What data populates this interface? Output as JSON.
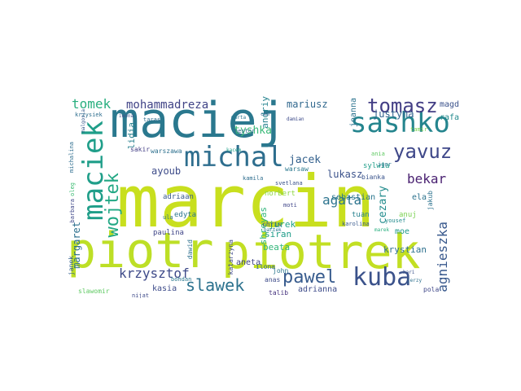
{
  "word_cloud": {
    "words": [
      {
        "text": "marcin",
        "color": "#c8df1e"
      },
      {
        "text": "maciej",
        "color": "#2a788e"
      },
      {
        "text": "piotr",
        "color": "#bddf26"
      },
      {
        "text": "piotrek",
        "color": "#c2df23"
      },
      {
        "text": "sashko",
        "color": "#25858e"
      },
      {
        "text": "maciek",
        "color": "#1f9e89"
      },
      {
        "text": "michal",
        "color": "#2e6e8e"
      },
      {
        "text": "kuba",
        "color": "#3b528b"
      },
      {
        "text": "tomasz",
        "color": "#433e85"
      },
      {
        "text": "yavuz",
        "color": "#3f4889"
      },
      {
        "text": "pawel",
        "color": "#375b8d"
      },
      {
        "text": "wojtek",
        "color": "#22a884"
      },
      {
        "text": "slawek",
        "color": "#2c728e"
      },
      {
        "text": "krzysztof",
        "color": "#3e4a89"
      },
      {
        "text": "agnieszka",
        "color": "#38588c"
      },
      {
        "text": "agata",
        "color": "#2c738e"
      },
      {
        "text": "bekar",
        "color": "#481f70"
      },
      {
        "text": "tomek",
        "color": "#29af7f"
      },
      {
        "text": "mohammadreza",
        "color": "#414487"
      },
      {
        "text": "mariusz",
        "color": "#31688e"
      },
      {
        "text": "justyna",
        "color": "#32648e"
      },
      {
        "text": "jacek",
        "color": "#34618d"
      },
      {
        "text": "tyshka",
        "color": "#38b977"
      },
      {
        "text": "andriy",
        "color": "#25838e"
      },
      {
        "text": "lukasz",
        "color": "#3b528b"
      },
      {
        "text": "cezary",
        "color": "#228c8d"
      },
      {
        "text": "margaret",
        "color": "#2d708e"
      },
      {
        "text": "ayoub",
        "color": "#3e4c8a"
      },
      {
        "text": "lidia",
        "color": "#27808e"
      },
      {
        "text": "shreyas",
        "color": "#30b57a"
      },
      {
        "text": "jurek",
        "color": "#1fa188"
      },
      {
        "text": "beata",
        "color": "#32b67a"
      },
      {
        "text": "siran",
        "color": "#1e9c89"
      },
      {
        "text": "aneta",
        "color": "#414487"
      },
      {
        "text": "adrianna",
        "color": "#3e4c8a"
      },
      {
        "text": "krystian",
        "color": "#2d708e"
      },
      {
        "text": "sebastian",
        "color": "#2a768e"
      },
      {
        "text": "norbert",
        "color": "#8fd744"
      },
      {
        "text": "magda",
        "color": "#3b528b"
      },
      {
        "text": "rafal",
        "color": "#238a8d"
      },
      {
        "text": "tuan",
        "color": "#26818e"
      },
      {
        "text": "moe",
        "color": "#1f998a"
      },
      {
        "text": "ela",
        "color": "#2c738e"
      },
      {
        "text": "anuj",
        "color": "#7ad151"
      },
      {
        "text": "kasia",
        "color": "#3e4c8a"
      },
      {
        "text": "edyta",
        "color": "#2a768e"
      },
      {
        "text": "paulina",
        "color": "#404688"
      },
      {
        "text": "adriaan",
        "color": "#38598c"
      },
      {
        "text": "joanna",
        "color": "#2c738e"
      },
      {
        "text": "sylwia",
        "color": "#1f9e89"
      },
      {
        "text": "bianka",
        "color": "#3a548c"
      },
      {
        "text": "warszawa",
        "color": "#2d708e"
      },
      {
        "text": "warsaw",
        "color": "#2a788e"
      },
      {
        "text": "sakir",
        "color": "#433e85"
      },
      {
        "text": "john",
        "color": "#2a778e"
      },
      {
        "text": "anas",
        "color": "#3e4c8a"
      },
      {
        "text": "talib",
        "color": "#46337e"
      },
      {
        "text": "pola",
        "color": "#3f4788"
      },
      {
        "text": "jakub",
        "color": "#2c728e"
      },
      {
        "text": "ilona",
        "color": "#32658e"
      },
      {
        "text": "chris",
        "color": "#3b528b"
      },
      {
        "text": "dawid",
        "color": "#2d708e"
      },
      {
        "text": "katarzyna",
        "color": "#3e4a89"
      },
      {
        "text": "slawomir",
        "color": "#5ec962"
      },
      {
        "text": "janek",
        "color": "#34618d"
      },
      {
        "text": "michalina",
        "color": "#2e6d8e"
      },
      {
        "text": "oleg",
        "color": "#3dbc74"
      },
      {
        "text": "barbara",
        "color": "#3f4889"
      },
      {
        "text": "karolina",
        "color": "#38598c"
      },
      {
        "text": "yousef",
        "color": "#228b8d"
      },
      {
        "text": "igor",
        "color": "#2a788e"
      },
      {
        "text": "ania",
        "color": "#5ec962"
      },
      {
        "text": "tamir",
        "color": "#7ad151"
      },
      {
        "text": "nestor",
        "color": "#31688e"
      },
      {
        "text": "svetlana",
        "color": "#3b528b"
      },
      {
        "text": "kamila",
        "color": "#2e6d8e"
      },
      {
        "text": "moti",
        "color": "#404688"
      },
      {
        "text": "nijat",
        "color": "#3e4a89"
      },
      {
        "text": "bohdan",
        "color": "#2a788e"
      },
      {
        "text": "ula",
        "color": "#2c728e"
      },
      {
        "text": "malgosia",
        "color": "#38598c"
      },
      {
        "text": "krzysiek",
        "color": "#2e6e8e"
      },
      {
        "text": "iwona",
        "color": "#3b528b"
      },
      {
        "text": "taras",
        "color": "#2e6e8e"
      },
      {
        "text": "cem",
        "color": "#34618d"
      },
      {
        "text": "marta",
        "color": "#2a768e"
      },
      {
        "text": "damian",
        "color": "#3e4c8a"
      },
      {
        "text": "kacem",
        "color": "#1f9e89"
      },
      {
        "text": "hari",
        "color": "#3b528b"
      },
      {
        "text": "jerzy",
        "color": "#2d708e"
      },
      {
        "text": "bartek",
        "color": "#2a768e"
      },
      {
        "text": "marek",
        "color": "#29af7f"
      }
    ]
  }
}
